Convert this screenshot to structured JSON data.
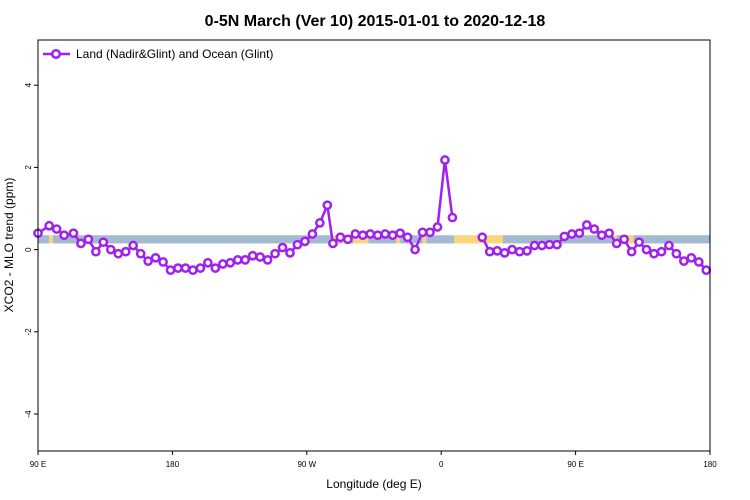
{
  "chart_data": {
    "type": "line",
    "title": "0-5N March (Ver 10)   2015-01-01 to 2020-12-18",
    "xlabel": "Longitude (deg E)",
    "ylabel": "XCO2 - MLO trend (ppm)",
    "xlim": [
      90,
      450
    ],
    "ylim": [
      -4.9,
      5.1
    ],
    "x_ticks": [
      90,
      162,
      234,
      306,
      378,
      450
    ],
    "x_tick_labels": [
      "90 E",
      "180",
      "90 W",
      "0",
      "90 E",
      "180"
    ],
    "y_ticks": [
      -4,
      -2,
      0,
      2,
      4
    ],
    "y_tick_labels": [
      "-4",
      "-2",
      "0",
      "2",
      "4"
    ],
    "legend": {
      "position": "top-left",
      "entries": [
        "Land (Nadir&Glint) and Ocean (Glint)"
      ]
    },
    "colors": {
      "line": "#a020f0",
      "ocean_band": "#a5b9d3",
      "land_band": "#fbd57a"
    },
    "series": [
      {
        "name": "Land (Nadir&Glint) and Ocean (Glint)",
        "x": [
          90,
          96,
          100,
          104,
          109,
          113,
          117,
          121,
          125,
          129,
          133,
          137,
          141,
          145,
          149,
          153,
          157,
          161,
          165,
          169,
          173,
          177,
          181,
          185,
          189,
          193,
          197,
          201,
          205,
          209,
          213,
          217,
          221,
          225,
          229,
          233,
          237,
          241,
          245,
          248,
          252,
          256,
          260,
          264,
          268,
          272,
          276,
          280,
          284,
          288,
          292,
          296,
          300,
          304,
          308,
          312,
          316,
          320,
          324,
          328,
          332,
          336,
          340,
          344,
          348,
          352,
          356,
          360,
          364,
          368,
          372,
          376,
          380,
          384,
          388,
          392,
          396,
          400,
          404,
          408,
          412,
          416,
          420,
          424,
          428,
          432,
          436,
          440,
          444,
          448
        ],
        "values": [
          0.4,
          0.58,
          0.5,
          0.35,
          0.4,
          0.15,
          0.25,
          -0.05,
          0.18,
          0.0,
          -0.1,
          -0.05,
          0.1,
          -0.1,
          -0.28,
          -0.2,
          -0.3,
          -0.5,
          -0.45,
          -0.45,
          -0.5,
          -0.45,
          -0.32,
          -0.45,
          -0.35,
          -0.32,
          -0.25,
          -0.25,
          -0.15,
          -0.18,
          -0.25,
          -0.1,
          0.05,
          -0.08,
          0.12,
          0.2,
          0.38,
          0.65,
          1.08,
          0.15,
          0.3,
          0.25,
          0.38,
          0.35,
          0.38,
          0.35,
          0.38,
          0.35,
          0.4,
          0.3,
          0.0,
          0.42,
          0.42,
          0.55,
          2.18,
          0.78,
          null,
          null,
          null,
          0.3,
          -0.05,
          -0.03,
          -0.08,
          0.0,
          -0.05,
          -0.03,
          0.1,
          0.1,
          0.12,
          0.12,
          0.32,
          0.38,
          0.4,
          0.6,
          0.5,
          0.35,
          0.4,
          0.15,
          0.25,
          -0.05,
          0.18,
          0.0,
          -0.1,
          -0.05,
          0.1,
          -0.1,
          -0.28,
          -0.2,
          -0.3,
          -0.5
        ]
      }
    ],
    "band": {
      "y_range": [
        0.15,
        0.35
      ],
      "segments": [
        {
          "from": 90,
          "to": 96,
          "kind": "ocean"
        },
        {
          "from": 96,
          "to": 98,
          "kind": "land"
        },
        {
          "from": 98,
          "to": 116,
          "kind": "ocean"
        },
        {
          "from": 116,
          "to": 118,
          "kind": "land"
        },
        {
          "from": 118,
          "to": 247,
          "kind": "ocean"
        },
        {
          "from": 247,
          "to": 251,
          "kind": "land"
        },
        {
          "from": 251,
          "to": 253,
          "kind": "ocean"
        },
        {
          "from": 253,
          "to": 256,
          "kind": "land"
        },
        {
          "from": 256,
          "to": 259,
          "kind": "ocean"
        },
        {
          "from": 259,
          "to": 267,
          "kind": "land"
        },
        {
          "from": 267,
          "to": 282,
          "kind": "ocean"
        },
        {
          "from": 282,
          "to": 284,
          "kind": "land"
        },
        {
          "from": 284,
          "to": 296,
          "kind": "ocean"
        },
        {
          "from": 296,
          "to": 298,
          "kind": "land"
        },
        {
          "from": 298,
          "to": 313,
          "kind": "ocean"
        },
        {
          "from": 313,
          "to": 339,
          "kind": "land"
        },
        {
          "from": 339,
          "to": 398,
          "kind": "ocean"
        },
        {
          "from": 398,
          "to": 400,
          "kind": "land"
        },
        {
          "from": 400,
          "to": 406,
          "kind": "ocean"
        },
        {
          "from": 406,
          "to": 409,
          "kind": "land"
        },
        {
          "from": 409,
          "to": 450,
          "kind": "ocean"
        }
      ]
    }
  }
}
